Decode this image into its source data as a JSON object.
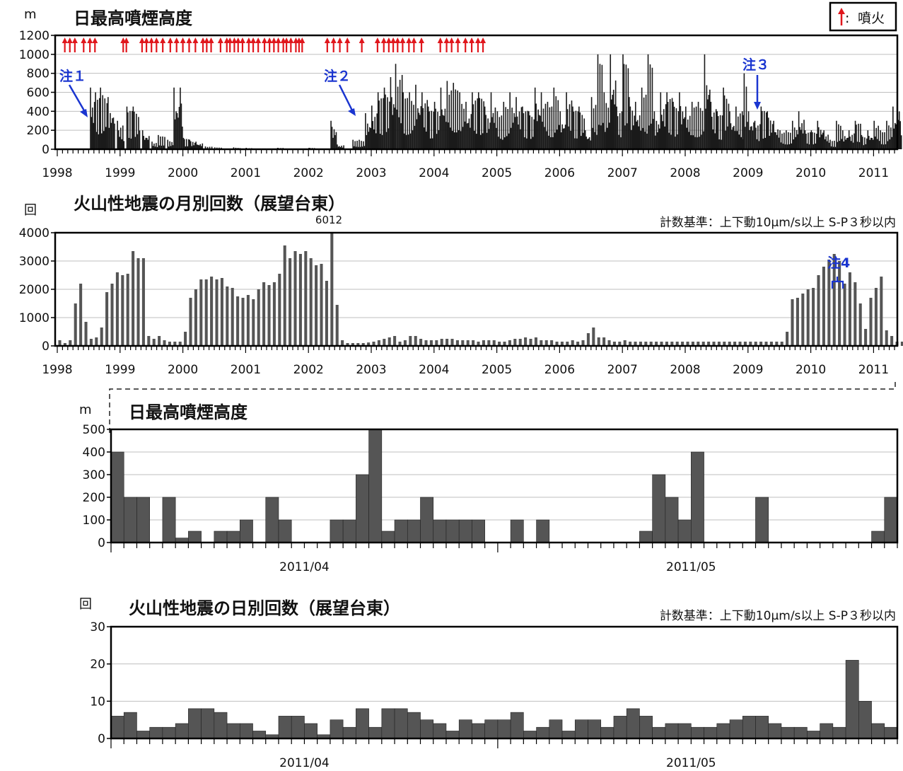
{
  "legend": {
    "label": "噴火",
    "arrow_color": "#e0161c",
    "sep": ":"
  },
  "colors": {
    "bar_dark": "#1a1a1a",
    "bar_gray": "#555555",
    "note_blue": "#1a35d0",
    "arrow_red": "#e0161c"
  },
  "notes": {
    "n1": "注１",
    "n2": "注２",
    "n3": "注３",
    "n4": "注4"
  },
  "chart_data": [
    {
      "type": "bar",
      "title": "日最高噴煙高度",
      "ylabel": "m",
      "ylim": [
        0,
        1200
      ],
      "yticks": [
        0,
        200,
        400,
        600,
        800,
        1000,
        1200
      ],
      "xticks": [
        "1998",
        "1999",
        "2000",
        "2001",
        "2002",
        "2003",
        "2004",
        "2005",
        "2006",
        "2007",
        "2008",
        "2009",
        "2010",
        "2011"
      ],
      "xrange": [
        1998.0,
        2011.43
      ],
      "series": [
        {
          "values": [
            [
              1998.52,
              650
            ],
            [
              1998.6,
              600
            ],
            [
              1998.68,
              650
            ],
            [
              1998.8,
              550
            ],
            [
              1998.95,
              300
            ],
            [
              1999.1,
              450
            ],
            [
              1999.2,
              450
            ],
            [
              1999.35,
              200
            ],
            [
              1999.5,
              80
            ],
            [
              1999.6,
              150
            ],
            [
              1999.75,
              100
            ],
            [
              1999.85,
              650
            ],
            [
              1999.95,
              650
            ],
            [
              2000.0,
              120
            ],
            [
              2000.1,
              100
            ],
            [
              2000.2,
              80
            ],
            [
              2000.35,
              30
            ],
            [
              2000.5,
              20
            ],
            [
              2000.8,
              20
            ],
            [
              2001.0,
              15
            ],
            [
              2001.5,
              15
            ],
            [
              2002.0,
              15
            ],
            [
              2002.35,
              300
            ],
            [
              2002.45,
              50
            ],
            [
              2002.7,
              100
            ],
            [
              2002.8,
              100
            ],
            [
              2002.9,
              380
            ],
            [
              2003.0,
              460
            ],
            [
              2003.1,
              600
            ],
            [
              2003.2,
              650
            ],
            [
              2003.3,
              760
            ],
            [
              2003.38,
              900
            ],
            [
              2003.5,
              600
            ],
            [
              2003.6,
              600
            ],
            [
              2003.7,
              680
            ],
            [
              2003.8,
              600
            ],
            [
              2003.9,
              450
            ],
            [
              2004.0,
              500
            ],
            [
              2004.1,
              650
            ],
            [
              2004.2,
              720
            ],
            [
              2004.3,
              700
            ],
            [
              2004.4,
              600
            ],
            [
              2004.5,
              500
            ],
            [
              2004.6,
              600
            ],
            [
              2004.7,
              600
            ],
            [
              2004.8,
              450
            ],
            [
              2004.9,
              600
            ],
            [
              2005.0,
              400
            ],
            [
              2005.1,
              500
            ],
            [
              2005.2,
              600
            ],
            [
              2005.3,
              550
            ],
            [
              2005.4,
              450
            ],
            [
              2005.5,
              400
            ],
            [
              2005.6,
              650
            ],
            [
              2005.7,
              600
            ],
            [
              2005.8,
              500
            ],
            [
              2005.9,
              650
            ],
            [
              2006.0,
              400
            ],
            [
              2006.1,
              600
            ],
            [
              2006.2,
              450
            ],
            [
              2006.3,
              450
            ],
            [
              2006.4,
              200
            ],
            [
              2006.5,
              550
            ],
            [
              2006.6,
              1000
            ],
            [
              2006.7,
              600
            ],
            [
              2006.8,
              1000
            ],
            [
              2006.9,
              450
            ],
            [
              2007.0,
              1000
            ],
            [
              2007.1,
              550
            ],
            [
              2007.2,
              500
            ],
            [
              2007.3,
              650
            ],
            [
              2007.4,
              1000
            ],
            [
              2007.5,
              400
            ],
            [
              2007.6,
              600
            ],
            [
              2007.7,
              600
            ],
            [
              2007.8,
              500
            ],
            [
              2007.9,
              600
            ],
            [
              2008.0,
              450
            ],
            [
              2008.1,
              500
            ],
            [
              2008.2,
              500
            ],
            [
              2008.3,
              1000
            ],
            [
              2008.4,
              500
            ],
            [
              2008.5,
              400
            ],
            [
              2008.6,
              650
            ],
            [
              2008.7,
              400
            ],
            [
              2008.8,
              450
            ],
            [
              2008.9,
              400
            ],
            [
              2008.93,
              800
            ],
            [
              2009.0,
              400
            ],
            [
              2009.1,
              300
            ],
            [
              2009.2,
              450
            ],
            [
              2009.3,
              400
            ],
            [
              2009.4,
              300
            ],
            [
              2009.5,
              200
            ],
            [
              2009.6,
              200
            ],
            [
              2009.7,
              300
            ],
            [
              2009.8,
              400
            ],
            [
              2009.9,
              200
            ],
            [
              2010.0,
              200
            ],
            [
              2010.1,
              300
            ],
            [
              2010.2,
              200
            ],
            [
              2010.3,
              100
            ],
            [
              2010.4,
              300
            ],
            [
              2010.5,
              200
            ],
            [
              2010.6,
              200
            ],
            [
              2010.7,
              300
            ],
            [
              2010.8,
              150
            ],
            [
              2010.9,
              200
            ],
            [
              2011.0,
              300
            ],
            [
              2011.1,
              200
            ],
            [
              2011.2,
              300
            ],
            [
              2011.3,
              450
            ],
            [
              2011.4,
              400
            ]
          ]
        }
      ],
      "eruption_years": [
        1998.12,
        1998.2,
        1998.28,
        1998.42,
        1998.52,
        1998.6,
        1999.05,
        1999.1,
        1999.35,
        1999.42,
        1999.5,
        1999.58,
        1999.68,
        1999.8,
        1999.9,
        2000.0,
        2000.1,
        2000.2,
        2000.32,
        2000.38,
        2000.45,
        2000.6,
        2000.7,
        2000.75,
        2000.82,
        2000.88,
        2000.95,
        2001.05,
        2001.12,
        2001.2,
        2001.3,
        2001.38,
        2001.45,
        2001.52,
        2001.6,
        2001.65,
        2001.72,
        2001.8,
        2001.85,
        2001.9,
        2002.3,
        2002.4,
        2002.5,
        2002.62,
        2002.85,
        2003.1,
        2003.2,
        2003.28,
        2003.35,
        2003.42,
        2003.5,
        2003.6,
        2003.68,
        2003.8,
        2004.1,
        2004.2,
        2004.28,
        2004.38,
        2004.5,
        2004.6,
        2004.7,
        2004.78
      ]
    },
    {
      "type": "bar",
      "title": "火山性地震の月別回数（展望台東）",
      "ylabel": "回",
      "criteria": "計数基準：上下動10μm/s以上 S-P３秒以内",
      "annotation": "6012",
      "ylim": [
        0,
        4000
      ],
      "yticks": [
        0,
        1000,
        2000,
        3000,
        4000
      ],
      "xticks": [
        "1998",
        "1999",
        "2000",
        "2001",
        "2002",
        "2003",
        "2004",
        "2005",
        "2006",
        "2007",
        "2008",
        "2009",
        "2010",
        "2011"
      ],
      "start_year": 1998,
      "start_month": 1,
      "values": [
        200,
        100,
        200,
        1500,
        2200,
        850,
        250,
        300,
        650,
        1900,
        2200,
        2600,
        2500,
        2550,
        3350,
        3100,
        3100,
        350,
        250,
        350,
        200,
        150,
        150,
        150,
        500,
        1700,
        2000,
        2350,
        2350,
        2450,
        2350,
        2400,
        2100,
        2050,
        1750,
        1700,
        1800,
        1650,
        2000,
        2250,
        2150,
        2250,
        2550,
        3550,
        3100,
        3350,
        3250,
        3350,
        3100,
        2850,
        2900,
        2300,
        4200,
        1450,
        200,
        100,
        100,
        100,
        100,
        120,
        150,
        200,
        250,
        300,
        350,
        150,
        200,
        350,
        350,
        250,
        200,
        200,
        200,
        250,
        250,
        250,
        200,
        200,
        200,
        200,
        150,
        200,
        200,
        200,
        150,
        150,
        200,
        250,
        250,
        300,
        250,
        300,
        200,
        200,
        200,
        150,
        150,
        150,
        200,
        150,
        200,
        450,
        650,
        300,
        300,
        200,
        150,
        150,
        200,
        150,
        150,
        150,
        150,
        150,
        150,
        150,
        150,
        150,
        150,
        150,
        150,
        150,
        150,
        150,
        150,
        150,
        150,
        150,
        150,
        150,
        150,
        150,
        150,
        150,
        150,
        150,
        150,
        150,
        150,
        500,
        1650,
        1700,
        1850,
        2000,
        2050,
        2500,
        2800,
        3050,
        3250,
        3000,
        2200,
        2600,
        2250,
        1500,
        600,
        1700,
        2050,
        2450,
        550,
        350,
        150,
        150,
        150,
        150,
        150,
        150,
        150,
        150,
        150
      ]
    },
    {
      "type": "bar",
      "title": "日最高噴煙高度",
      "ylabel": "m",
      "ylim": [
        0,
        500
      ],
      "yticks": [
        0,
        100,
        200,
        300,
        400,
        500
      ],
      "xticks": [
        "2011/04",
        "2011/05"
      ],
      "tick_days": [
        15,
        45
      ],
      "values": [
        400,
        200,
        200,
        0,
        200,
        20,
        50,
        0,
        50,
        50,
        100,
        0,
        200,
        100,
        0,
        0,
        0,
        100,
        100,
        300,
        500,
        50,
        100,
        100,
        200,
        100,
        100,
        100,
        100,
        0,
        0,
        100,
        0,
        100,
        0,
        0,
        0,
        0,
        0,
        0,
        0,
        50,
        300,
        200,
        100,
        400,
        0,
        0,
        0,
        0,
        200,
        0,
        0,
        0,
        0,
        0,
        0,
        0,
        0,
        50,
        200
      ]
    },
    {
      "type": "bar",
      "title": "火山性地震の日別回数（展望台東）",
      "ylabel": "回",
      "criteria": "計数基準：上下動10μm/s以上 S-P３秒以内",
      "ylim": [
        0,
        30
      ],
      "yticks": [
        0,
        10,
        20,
        30
      ],
      "xticks": [
        "2011/04",
        "2011/05"
      ],
      "tick_days": [
        15,
        45
      ],
      "values": [
        6,
        7,
        2,
        3,
        3,
        4,
        8,
        8,
        7,
        4,
        4,
        2,
        1,
        6,
        6,
        4,
        1,
        5,
        3,
        8,
        3,
        8,
        8,
        7,
        5,
        4,
        2,
        5,
        4,
        5,
        5,
        7,
        2,
        3,
        5,
        2,
        5,
        5,
        3,
        6,
        8,
        6,
        3,
        4,
        4,
        3,
        3,
        4,
        5,
        6,
        6,
        4,
        3,
        3,
        2,
        4,
        3,
        21,
        10,
        4,
        3
      ]
    }
  ]
}
